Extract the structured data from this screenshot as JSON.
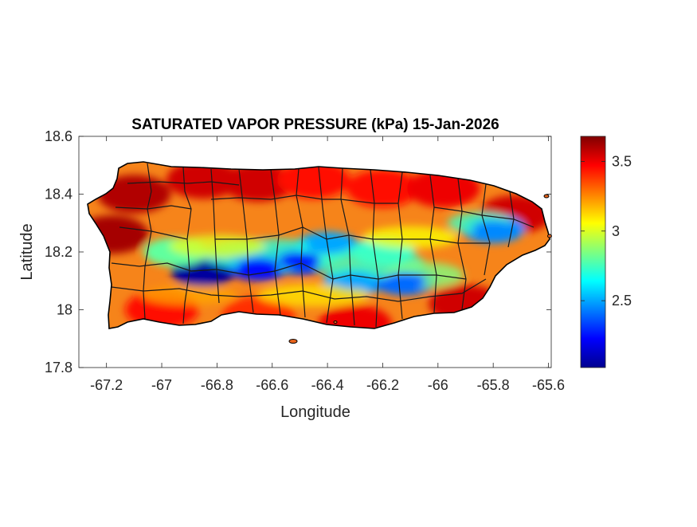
{
  "chart_data": {
    "type": "heatmap",
    "title": "SATURATED VAPOR PRESSURE (kPa) 15-Jan-2026",
    "xlabel": "Longitude",
    "ylabel": "Latitude",
    "xlim": [
      -67.3,
      -65.59
    ],
    "ylim": [
      17.8,
      18.6
    ],
    "x_ticks": [
      -67.2,
      -67,
      -66.8,
      -66.6,
      -66.4,
      -66.2,
      -66,
      -65.8,
      -65.6
    ],
    "x_tick_labels": [
      "-67.2",
      "-67",
      "-66.8",
      "-66.6",
      "-66.4",
      "-66.2",
      "-66",
      "-65.8",
      "-65.6"
    ],
    "y_ticks": [
      17.8,
      18,
      18.2,
      18.4,
      18.6
    ],
    "y_tick_labels": [
      "17.8",
      "18",
      "18.2",
      "18.4",
      "18.6"
    ],
    "colorbar": {
      "colormap": "jet",
      "range": [
        2.02,
        3.68
      ],
      "ticks": [
        2.5,
        3,
        3.5
      ],
      "tick_labels": [
        "2.5",
        "3",
        "3.5"
      ]
    },
    "region": "Puerto Rico (municipality boundaries)",
    "field_hotspots": [
      {
        "lon": -67.18,
        "lat": 18.26,
        "value": 3.62
      },
      {
        "lon": -67.1,
        "lat": 18.4,
        "value": 3.6
      },
      {
        "lon": -66.85,
        "lat": 18.45,
        "value": 3.55
      },
      {
        "lon": -66.65,
        "lat": 18.44,
        "value": 3.55
      },
      {
        "lon": -66.45,
        "lat": 18.45,
        "value": 3.45
      },
      {
        "lon": -66.2,
        "lat": 18.42,
        "value": 3.45
      },
      {
        "lon": -65.98,
        "lat": 18.42,
        "value": 3.5
      },
      {
        "lon": -65.72,
        "lat": 18.33,
        "value": 3.55
      },
      {
        "lon": -65.9,
        "lat": 18.02,
        "value": 3.55
      },
      {
        "lon": -66.3,
        "lat": 17.95,
        "value": 3.5
      },
      {
        "lon": -66.65,
        "lat": 17.98,
        "value": 3.4
      },
      {
        "lon": -67.0,
        "lat": 18.0,
        "value": 3.45
      },
      {
        "lon": -66.85,
        "lat": 18.13,
        "value": 2.05
      },
      {
        "lon": -66.65,
        "lat": 18.15,
        "value": 2.25
      },
      {
        "lon": -66.5,
        "lat": 18.17,
        "value": 2.25
      },
      {
        "lon": -66.4,
        "lat": 18.22,
        "value": 2.5
      },
      {
        "lon": -66.3,
        "lat": 18.1,
        "value": 2.5
      },
      {
        "lon": -66.12,
        "lat": 18.1,
        "value": 2.4
      },
      {
        "lon": -66.2,
        "lat": 18.2,
        "value": 2.7
      },
      {
        "lon": -65.8,
        "lat": 18.28,
        "value": 2.45
      },
      {
        "lon": -66.95,
        "lat": 18.2,
        "value": 2.8
      }
    ]
  }
}
